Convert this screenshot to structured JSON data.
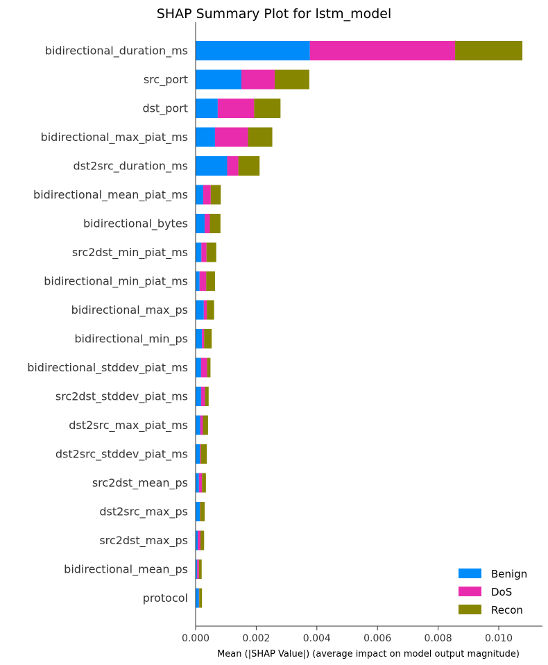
{
  "chart_data": {
    "type": "bar",
    "orientation": "horizontal",
    "stacked": true,
    "title": "SHAP Summary Plot for lstm_model",
    "xlabel": "Mean (|SHAP Value|) (average impact on model output magnitude)",
    "ylabel": "",
    "xlim": [
      0,
      0.011
    ],
    "xticks": [
      0,
      0.002,
      0.004,
      0.006,
      0.008,
      0.01
    ],
    "xtick_labels": [
      "0.000",
      "0.002",
      "0.004",
      "0.006",
      "0.008",
      "0.010"
    ],
    "grid": false,
    "legend_position": "bottom-right",
    "categories": [
      "bidirectional_duration_ms",
      "src_port",
      "dst_port",
      "bidirectional_max_piat_ms",
      "dst2src_duration_ms",
      "bidirectional_mean_piat_ms",
      "bidirectional_bytes",
      "src2dst_min_piat_ms",
      "bidirectional_min_piat_ms",
      "bidirectional_max_ps",
      "bidirectional_min_ps",
      "bidirectional_stddev_piat_ms",
      "src2dst_stddev_piat_ms",
      "dst2src_max_piat_ms",
      "dst2src_stddev_piat_ms",
      "src2dst_mean_ps",
      "dst2src_max_ps",
      "src2dst_max_ps",
      "bidirectional_mean_ps",
      "protocol"
    ],
    "series": [
      {
        "name": "Benign",
        "color": "#008bfb",
        "values": [
          0.00377,
          0.00151,
          0.00073,
          0.00064,
          0.00104,
          0.00025,
          0.0003,
          0.00019,
          0.00013,
          0.00027,
          0.00021,
          0.00018,
          0.00018,
          0.00015,
          0.00014,
          0.00011,
          0.00014,
          7e-05,
          5e-05,
          0.00011
        ]
      },
      {
        "name": "DoS",
        "color": "#e92cad",
        "values": [
          0.00479,
          0.0011,
          0.0012,
          0.00109,
          0.00037,
          0.00025,
          0.00017,
          0.00017,
          0.00022,
          0.0001,
          7e-05,
          0.0002,
          0.00013,
          9e-05,
          3e-05,
          0.0001,
          1e-05,
          9e-05,
          6e-05,
          1e-05
        ]
      },
      {
        "name": "Recon",
        "color": "#868600",
        "values": [
          0.00222,
          0.00114,
          0.00087,
          0.0008,
          0.0007,
          0.00033,
          0.00035,
          0.00032,
          0.00029,
          0.00024,
          0.00025,
          0.00011,
          0.00012,
          0.00017,
          0.0002,
          0.00013,
          0.00015,
          0.00012,
          9e-05,
          9e-05
        ]
      }
    ]
  }
}
